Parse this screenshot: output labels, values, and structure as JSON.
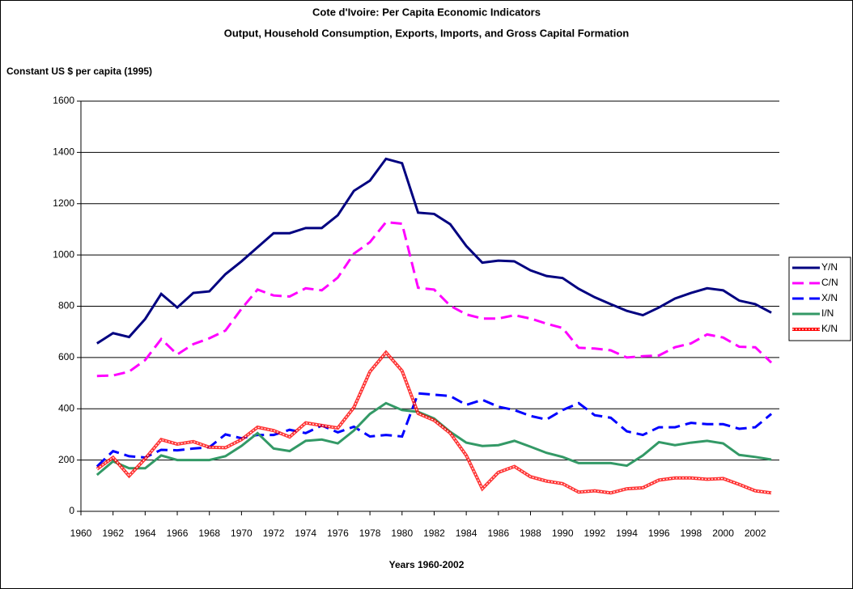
{
  "chart_data": {
    "type": "line",
    "title": "Cote d'Ivoire: Per Capita Economic Indicators",
    "subtitle": "Output, Household Consumption, Exports, Imports, and Gross Capital Formation",
    "y_label": "Constant US $ per capita (1995)",
    "x_label": "Years 1960-2002",
    "x": [
      1961,
      1962,
      1963,
      1964,
      1965,
      1966,
      1967,
      1968,
      1969,
      1970,
      1971,
      1972,
      1973,
      1974,
      1975,
      1976,
      1977,
      1978,
      1979,
      1980,
      1981,
      1982,
      1983,
      1984,
      1985,
      1986,
      1987,
      1988,
      1989,
      1990,
      1991,
      1992,
      1993,
      1994,
      1995,
      1996,
      1997,
      1998,
      1999,
      2000,
      2001,
      2002,
      2003
    ],
    "xlim": [
      1960,
      2003.5
    ],
    "xticks": [
      1960,
      1962,
      1964,
      1966,
      1968,
      1970,
      1972,
      1974,
      1976,
      1978,
      1980,
      1982,
      1984,
      1986,
      1988,
      1990,
      1992,
      1994,
      1996,
      1998,
      2000,
      2002
    ],
    "ylim": [
      0,
      1600
    ],
    "yticks": [
      0,
      200,
      400,
      600,
      800,
      1000,
      1200,
      1400,
      1600
    ],
    "grid": true,
    "legend": "right",
    "series": [
      {
        "name": "Y/N",
        "color": "#000080",
        "dash": "solid",
        "values": [
          655,
          695,
          680,
          750,
          848,
          795,
          852,
          858,
          925,
          975,
          1030,
          1085,
          1085,
          1105,
          1105,
          1155,
          1250,
          1290,
          1375,
          1358,
          1165,
          1160,
          1120,
          1035,
          970,
          978,
          975,
          940,
          918,
          910,
          868,
          835,
          808,
          782,
          765,
          795,
          830,
          852,
          870,
          862,
          822,
          808,
          775
        ]
      },
      {
        "name": "C/N",
        "color": "#ff00ff",
        "dash": "dashed",
        "values": [
          528,
          530,
          545,
          590,
          672,
          612,
          652,
          675,
          705,
          790,
          865,
          842,
          838,
          870,
          862,
          912,
          1005,
          1050,
          1128,
          1122,
          872,
          865,
          802,
          768,
          752,
          752,
          765,
          752,
          732,
          715,
          638,
          635,
          628,
          600,
          605,
          608,
          640,
          655,
          690,
          678,
          642,
          640,
          580
        ]
      },
      {
        "name": "X/N",
        "color": "#0000ff",
        "dash": "dashed",
        "values": [
          175,
          235,
          215,
          210,
          240,
          238,
          245,
          250,
          300,
          285,
          298,
          298,
          318,
          305,
          335,
          308,
          330,
          292,
          298,
          292,
          460,
          455,
          450,
          415,
          435,
          408,
          395,
          372,
          358,
          395,
          422,
          375,
          365,
          312,
          298,
          328,
          328,
          345,
          340,
          340,
          322,
          328,
          380
        ]
      },
      {
        "name": "I/N",
        "color": "#339966",
        "dash": "solid",
        "values": [
          142,
          195,
          168,
          168,
          218,
          200,
          200,
          200,
          215,
          255,
          305,
          245,
          235,
          275,
          280,
          265,
          315,
          380,
          422,
          395,
          388,
          362,
          310,
          268,
          255,
          258,
          275,
          252,
          228,
          212,
          188,
          188,
          188,
          178,
          218,
          270,
          258,
          268,
          275,
          265,
          220,
          212,
          202
        ]
      },
      {
        "name": "K/N",
        "color": "#ff0000",
        "dash": "dotted",
        "values": [
          165,
          210,
          138,
          205,
          280,
          262,
          272,
          250,
          248,
          280,
          328,
          315,
          290,
          345,
          335,
          325,
          405,
          545,
          620,
          548,
          382,
          355,
          305,
          218,
          88,
          152,
          175,
          135,
          118,
          108,
          75,
          80,
          72,
          88,
          92,
          122,
          130,
          130,
          125,
          128,
          105,
          80,
          72
        ]
      }
    ]
  }
}
